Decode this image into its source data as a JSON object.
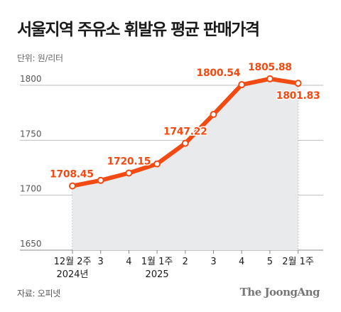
{
  "title": "서울지역 주유소 휘발유 평균 판매가격",
  "unit_label": "단위: 원/리터",
  "source": "자료: 오피넷",
  "brand": "The JoongAng",
  "colors": {
    "line": "#f24a13",
    "area": "#e9eaec",
    "text": "#1a1a1a",
    "grid": "#bdbdbd"
  },
  "chart_data": {
    "type": "line",
    "title": "서울지역 주유소 휘발유 평균 판매가격",
    "ylabel": "단위: 원/리터",
    "ylim": [
      1650,
      1800
    ],
    "yticks": [
      1800,
      1750,
      1700,
      1650
    ],
    "grid": true,
    "categories": [
      "12월 2주",
      "3",
      "4",
      "1월 1주",
      "2",
      "3",
      "4",
      "5",
      "2월 1주"
    ],
    "year_labels": [
      {
        "index": 0,
        "text": "2024년"
      },
      {
        "index": 3,
        "text": "2025"
      }
    ],
    "values": [
      1708.45,
      1713.5,
      1720.15,
      1728.5,
      1747.22,
      1773.5,
      1800.54,
      1805.88,
      1801.83
    ],
    "data_labels": [
      {
        "index": 0,
        "text": "1708.45",
        "pos": "above"
      },
      {
        "index": 2,
        "text": "1720.15",
        "pos": "above"
      },
      {
        "index": 4,
        "text": "1747.22",
        "pos": "above"
      },
      {
        "index": 6,
        "text": "1800.54",
        "pos": "above-left"
      },
      {
        "index": 7,
        "text": "1805.88",
        "pos": "above"
      },
      {
        "index": 8,
        "text": "1801.83",
        "pos": "below"
      }
    ]
  }
}
